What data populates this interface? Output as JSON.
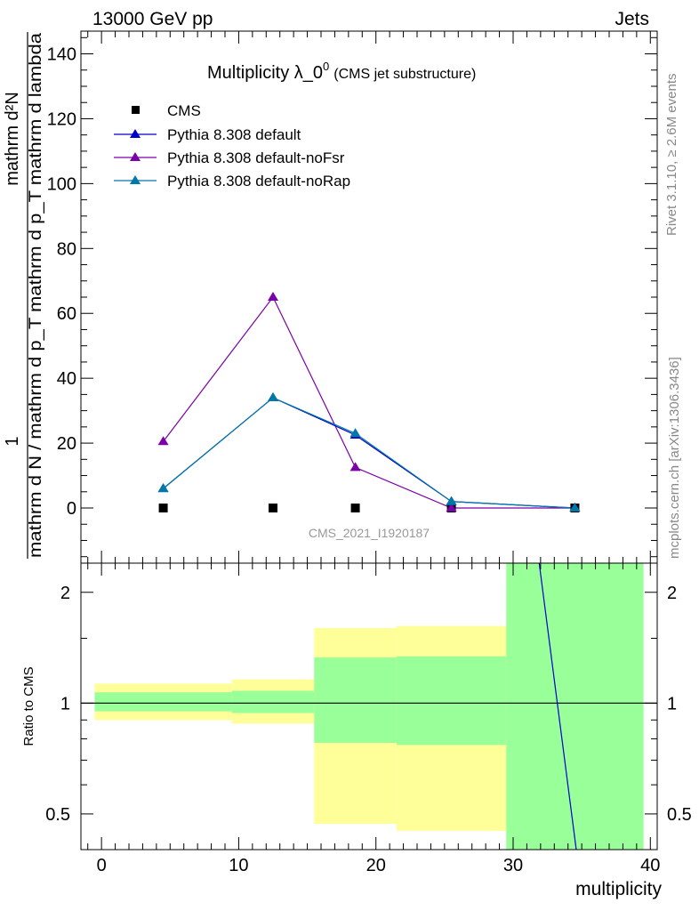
{
  "header": {
    "left": "13000 GeV pp",
    "right": "Jets"
  },
  "side_labels": {
    "rivet": "Rivet 3.1.10, ≥ 2.6M events",
    "mcplots": "mcplots.cern.ch [arXiv:1306.3436]"
  },
  "plot_title": {
    "main": "Multiplicity λ_0",
    "sup": "0",
    "sub": "(CMS jet substructure)"
  },
  "watermark": "CMS_2021_I1920187",
  "colors": {
    "cms": "#000000",
    "default": "#0000cc",
    "noFsr": "#7a00a8",
    "noRap": "#0078a8",
    "band_outer": "#ffff99",
    "band_inner": "#99ff99"
  },
  "chart_data": [
    {
      "type": "scatter",
      "title": "Multiplicity λ_0^0 (CMS jet substructure)",
      "xlabel": "multiplicity",
      "ylabel_numerator": "1",
      "ylabel_denominator": "mathrm d N / mathrm d p_T mathrm d p_T mathrm d lambda",
      "ylabel_top": "mathrm d²N",
      "ylim": [
        -17,
        147
      ],
      "xlim": [
        -1.5,
        40.5
      ],
      "yticks": [
        0,
        20,
        40,
        60,
        80,
        100,
        120,
        140
      ],
      "legend_position": "top-left",
      "series": [
        {
          "name": "CMS",
          "marker": "square",
          "x": [
            4.5,
            12.5,
            18.5,
            25.5,
            34.5
          ],
          "y": [
            0,
            0,
            0,
            0,
            0
          ]
        },
        {
          "name": "Pythia 8.308 default",
          "marker": "triangle",
          "x": [
            4.5,
            12.5,
            18.5,
            25.5,
            34.5
          ],
          "y": [
            6,
            34,
            22.5,
            2,
            0
          ]
        },
        {
          "name": "Pythia 8.308 default-noFsr",
          "marker": "triangle",
          "x": [
            4.5,
            12.5,
            18.5,
            25.5,
            34.5
          ],
          "y": [
            20.5,
            65,
            12.5,
            0,
            0
          ]
        },
        {
          "name": "Pythia 8.308 default-noRap",
          "marker": "triangle",
          "x": [
            4.5,
            12.5,
            18.5,
            25.5,
            34.5
          ],
          "y": [
            6,
            34,
            23,
            2,
            0
          ]
        }
      ]
    },
    {
      "type": "line",
      "ylabel": "Ratio to CMS",
      "xlabel": "multiplicity",
      "log_y": true,
      "ylim": [
        0.4,
        2.4
      ],
      "xlim": [
        -1.5,
        40.5
      ],
      "yticks": [
        0.5,
        1,
        2
      ],
      "ytick_labels": [
        "0.5",
        "1",
        "2"
      ],
      "xticks": [
        0,
        10,
        20,
        30,
        40
      ],
      "xtick_labels": [
        "0",
        "10",
        "20",
        "30",
        "40"
      ],
      "bands": [
        {
          "x0": -0.5,
          "x1": 9.5,
          "inner": [
            0.95,
            1.07
          ],
          "outer": [
            0.9,
            1.13
          ]
        },
        {
          "x0": 9.5,
          "x1": 15.5,
          "inner": [
            0.94,
            1.08
          ],
          "outer": [
            0.88,
            1.16
          ]
        },
        {
          "x0": 15.5,
          "x1": 21.5,
          "inner": [
            0.78,
            1.33
          ],
          "outer": [
            0.47,
            1.6
          ]
        },
        {
          "x0": 21.5,
          "x1": 29.5,
          "inner": [
            0.77,
            1.34
          ],
          "outer": [
            0.45,
            1.62
          ]
        },
        {
          "x0": 29.5,
          "x1": 39.5,
          "inner": [
            0.4,
            2.4
          ],
          "outer": [
            0.4,
            2.4
          ]
        }
      ],
      "ratio_line": {
        "name": "Pythia 8.308 default",
        "x": [
          31.9,
          34.6
        ],
        "y": [
          2.4,
          0.4
        ]
      }
    }
  ]
}
